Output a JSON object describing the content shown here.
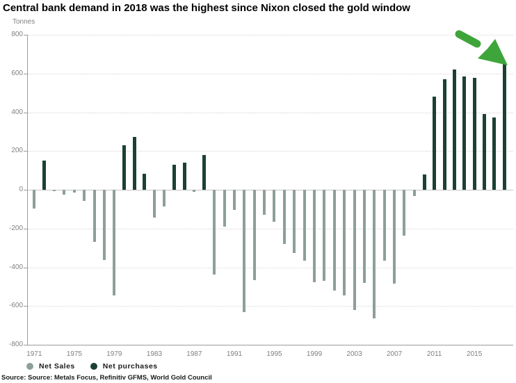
{
  "title": "Central bank demand in 2018 was the highest since Nixon closed the gold window",
  "axis_unit": "Tonnes",
  "source_line": "Source: Source: Metals Focus, Refinitiv GFMS, World Gold Council",
  "legend": {
    "net_sales_label": "Net Sales",
    "net_purchases_label": "Net purchases"
  },
  "colors": {
    "net_sales_bar": "#8d9f98",
    "net_purchases_bar": "#1c4036",
    "arrow_green": "#3ea53a",
    "axis_text": "#808080",
    "gridline": "#d4d4d4",
    "zero_line": "#c4c4c4",
    "axis_line": "#9b9b9b",
    "title_text": "#000000"
  },
  "chart_data": {
    "type": "bar",
    "title": "Central bank demand in 2018 was the highest since Nixon closed the gold window",
    "ylabel": "Tonnes",
    "ylim": [
      -800,
      800
    ],
    "ytick_interval": 200,
    "yticks": [
      800,
      600,
      400,
      200,
      0,
      -200,
      -400,
      -600,
      -800
    ],
    "xtick_labels": [
      "1971",
      "1975",
      "1979",
      "1983",
      "1987",
      "1991",
      "1995",
      "1999",
      "2003",
      "2007",
      "2011",
      "2015"
    ],
    "grid": "horizontal-dotted",
    "legend_position": "bottom-left",
    "series_note": "Single annual series: negative values shown as Net Sales (light bars), positive values as Net purchases (dark bars)",
    "years": [
      1971,
      1972,
      1973,
      1974,
      1975,
      1976,
      1977,
      1978,
      1979,
      1980,
      1981,
      1982,
      1983,
      1984,
      1985,
      1986,
      1987,
      1988,
      1989,
      1990,
      1991,
      1992,
      1993,
      1994,
      1995,
      1996,
      1997,
      1998,
      1999,
      2000,
      2001,
      2002,
      2003,
      2004,
      2005,
      2006,
      2007,
      2008,
      2009,
      2010,
      2011,
      2012,
      2013,
      2014,
      2015,
      2016,
      2017,
      2018
    ],
    "values": [
      -96,
      150,
      -8,
      -25,
      -15,
      -58,
      -270,
      -362,
      -545,
      230,
      273,
      82,
      -143,
      -86,
      129,
      141,
      -12,
      180,
      -436,
      -190,
      -105,
      -630,
      -465,
      -130,
      -165,
      -280,
      -325,
      -365,
      -477,
      -470,
      -520,
      -545,
      -620,
      -479,
      -663,
      -365,
      -484,
      -235,
      -34,
      79,
      481,
      569,
      620,
      584,
      577,
      390,
      372,
      651
    ],
    "annotation": {
      "type": "hand-drawn-arrow",
      "target_year": 2018,
      "meaning": "points to the 2018 bar, the highest since 1971"
    }
  }
}
